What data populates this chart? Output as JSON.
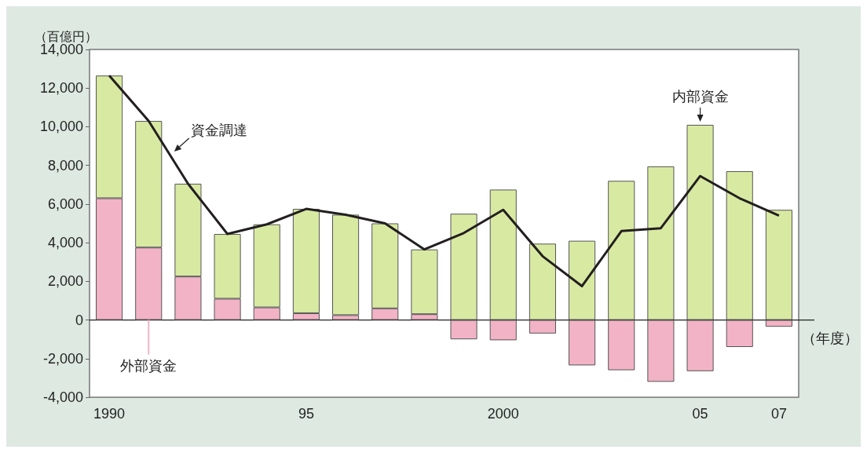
{
  "chart_data": {
    "type": "bar",
    "stacked": true,
    "ylabel": "（百億円）",
    "xlabel": "（年度）",
    "categories": [
      "1990",
      null,
      null,
      null,
      null,
      "95",
      null,
      null,
      null,
      null,
      "2000",
      null,
      null,
      null,
      null,
      "05",
      null,
      "07"
    ],
    "series": [
      {
        "name": "外部資金",
        "color": "#f2b3c6",
        "values": [
          6300,
          3750,
          2250,
          1100,
          650,
          350,
          250,
          600,
          300,
          -1000,
          -1050,
          -700,
          -2350,
          -2600,
          -3200,
          -2650,
          -1400,
          -350
        ]
      },
      {
        "name": "内部資金",
        "color": "#d8eaa2",
        "values": [
          6350,
          6550,
          4800,
          3350,
          4300,
          5400,
          5200,
          4400,
          3350,
          5500,
          6750,
          3950,
          4100,
          7200,
          7950,
          10100,
          7700,
          5700
        ]
      },
      {
        "name": "資金調達",
        "type": "line",
        "color": "#231f20",
        "values": [
          12650,
          10300,
          7050,
          4450,
          4950,
          5750,
          5450,
          5000,
          3650,
          4500,
          5700,
          3300,
          1750,
          4600,
          4750,
          7450,
          6300,
          5400
        ]
      }
    ],
    "ylim": [
      -4000,
      14000
    ],
    "yticks": [
      {
        "value": -4000,
        "label": "-4,000"
      },
      {
        "value": -2000,
        "label": "-2,000"
      },
      0,
      {
        "value": 2000,
        "label": "2,000"
      },
      {
        "value": 4000,
        "label": "4,000"
      },
      {
        "value": 6000,
        "label": "6,000"
      },
      {
        "value": 8000,
        "label": "8,000"
      },
      {
        "value": 10000,
        "label": "10,000"
      },
      {
        "value": 12000,
        "label": "12,000"
      },
      {
        "value": 14000,
        "label": "14,000"
      }
    ],
    "legend": false,
    "marker": "none",
    "line_style": "solid"
  }
}
